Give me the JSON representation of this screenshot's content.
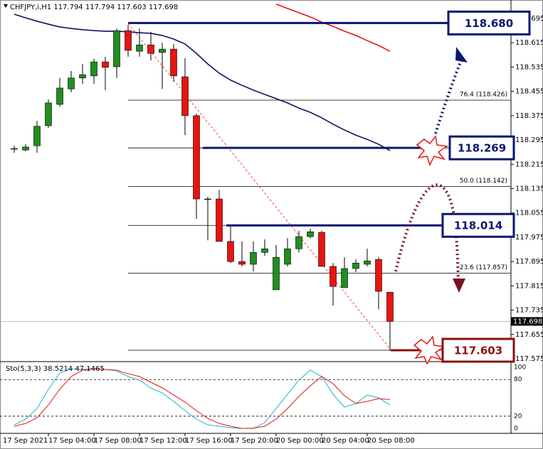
{
  "chart_data": {
    "type": "candlestick",
    "title": "CHFJPY,i,H1  117.794 117.794 117.603 117.698",
    "date_label": "17 Sep 2021",
    "categories": [
      null,
      null,
      null,
      "17 Sep 04:00",
      null,
      null,
      null,
      "17 Sep 08:00",
      null,
      null,
      null,
      "17 Sep 12:00",
      null,
      null,
      null,
      "17 Sep 16:00",
      null,
      null,
      null,
      "17 Sep 20:00",
      null,
      null,
      null,
      "20 Sep 00:00",
      null,
      null,
      null,
      "20 Sep 04:00",
      null,
      null,
      null,
      "20 Sep 08:00",
      null,
      null
    ],
    "open": [
      118.265,
      118.262,
      118.276,
      118.342,
      118.412,
      118.463,
      118.499,
      118.506,
      118.552,
      118.536,
      118.655,
      118.587,
      118.608,
      118.583,
      118.594,
      118.503,
      118.375,
      118.101,
      118.101,
      117.961,
      117.895,
      117.886,
      117.925,
      117.802,
      117.886,
      117.937,
      117.977,
      117.991,
      117.879,
      117.809,
      117.872,
      117.886,
      117.902,
      117.794
    ],
    "high": [
      118.276,
      118.281,
      118.358,
      118.428,
      118.499,
      118.522,
      118.545,
      118.562,
      118.569,
      118.662,
      118.674,
      118.662,
      118.651,
      118.615,
      118.611,
      118.564,
      118.382,
      118.108,
      118.131,
      118.012,
      117.961,
      117.961,
      117.968,
      117.949,
      117.972,
      117.996,
      118.003,
      117.996,
      117.89,
      117.909,
      117.902,
      117.937,
      117.909,
      117.794
    ],
    "low": [
      118.253,
      118.258,
      118.253,
      118.335,
      118.405,
      118.452,
      118.48,
      118.48,
      118.459,
      118.499,
      118.569,
      118.569,
      118.557,
      118.463,
      118.487,
      118.311,
      118.035,
      117.965,
      117.961,
      117.89,
      117.879,
      117.862,
      117.914,
      117.802,
      117.879,
      117.925,
      117.972,
      117.879,
      117.75,
      117.809,
      117.86,
      117.879,
      117.738,
      117.603
    ],
    "close": [
      118.267,
      118.272,
      118.34,
      118.417,
      118.466,
      118.499,
      118.51,
      118.552,
      118.534,
      118.655,
      118.59,
      118.608,
      118.58,
      118.594,
      118.506,
      118.375,
      118.101,
      118.101,
      117.961,
      117.895,
      117.886,
      117.925,
      117.937,
      117.909,
      117.937,
      117.977,
      117.993,
      117.879,
      117.813,
      117.872,
      117.89,
      117.897,
      117.797,
      117.698
    ],
    "up_color": "#1f8f1f",
    "down_color": "#e8140f",
    "overlays": [
      {
        "color": "#0b1464",
        "values": [
          118.709,
          118.697,
          118.686,
          118.676,
          118.667,
          118.662,
          118.658,
          118.655,
          118.653,
          118.653,
          118.651,
          118.648,
          118.646,
          118.639,
          118.627,
          118.611,
          118.58,
          118.545,
          118.515,
          118.492,
          118.475,
          118.459,
          118.445,
          118.431,
          118.417,
          118.4,
          118.386,
          118.368,
          118.347,
          118.328,
          118.311,
          118.297,
          118.281,
          118.26
        ]
      },
      {
        "color": "#e8140f",
        "values": [
          null,
          null,
          null,
          null,
          null,
          null,
          null,
          null,
          null,
          null,
          null,
          null,
          null,
          null,
          null,
          null,
          null,
          null,
          null,
          null,
          null,
          null,
          null,
          118.742,
          118.728,
          118.714,
          118.7,
          118.683,
          118.669,
          118.653,
          118.639,
          118.622,
          118.606,
          118.587
        ]
      }
    ],
    "ylim": [
      117.568,
      118.744
    ],
    "yticks": [
      118.695,
      118.615,
      118.535,
      118.455,
      118.375,
      118.295,
      118.215,
      118.135,
      118.055,
      117.975,
      117.895,
      117.815,
      117.735,
      117.655,
      117.575
    ],
    "last_price": {
      "value": 117.698,
      "label": "117.698"
    },
    "fib_lines": [
      118.68,
      118.426,
      118.269,
      118.142,
      118.014,
      117.857,
      117.603
    ],
    "fib_labels": [
      {
        "value": 118.426,
        "label": "76.4 (118.426)"
      },
      {
        "value": 118.142,
        "label": "50.0 (118.142)"
      },
      {
        "value": 117.857,
        "label": "23.6 (117.857)"
      }
    ],
    "levels": [
      {
        "value": 118.68,
        "label": "118.680",
        "color": "#0a1670"
      },
      {
        "value": 118.269,
        "label": "118.269",
        "color": "#0a1670"
      },
      {
        "value": 118.014,
        "label": "118.014",
        "color": "#0a1670"
      },
      {
        "value": 117.603,
        "label": "117.603",
        "color": "#8b1010"
      }
    ],
    "stochastic": {
      "label": "Sto(5,3,3) 38.5214 47.1465",
      "ylim": [
        -5.8,
        107
      ],
      "yticks": [
        100,
        80,
        20,
        0
      ],
      "series": [
        {
          "color": "#22b5c8",
          "values": [
            5.8,
            15.1,
            32.6,
            64.0,
            90.7,
            97.7,
            96.5,
            97.7,
            96.5,
            94.2,
            84.9,
            79.1,
            66.3,
            58.1,
            44.2,
            29.1,
            15.1,
            5.8,
            3.5,
            1.2,
            0,
            0,
            9.3,
            32.6,
            55.8,
            79.1,
            95.3,
            84.9,
            55.8,
            34.9,
            40.7,
            54.7,
            50.0,
            38.5214
          ]
        },
        {
          "color": "#e8140f",
          "values": [
            3.5,
            8.1,
            17.4,
            38.4,
            64.0,
            84.9,
            95.3,
            97.7,
            96.5,
            95.3,
            89.5,
            84.9,
            75.6,
            66.3,
            54.7,
            43.0,
            29.1,
            16.3,
            8.1,
            3.5,
            0,
            0.5,
            3.5,
            15.1,
            32.6,
            52.3,
            69.8,
            84.9,
            73.3,
            53.5,
            40.7,
            44.2,
            48.8,
            47.1465
          ]
        }
      ]
    }
  }
}
